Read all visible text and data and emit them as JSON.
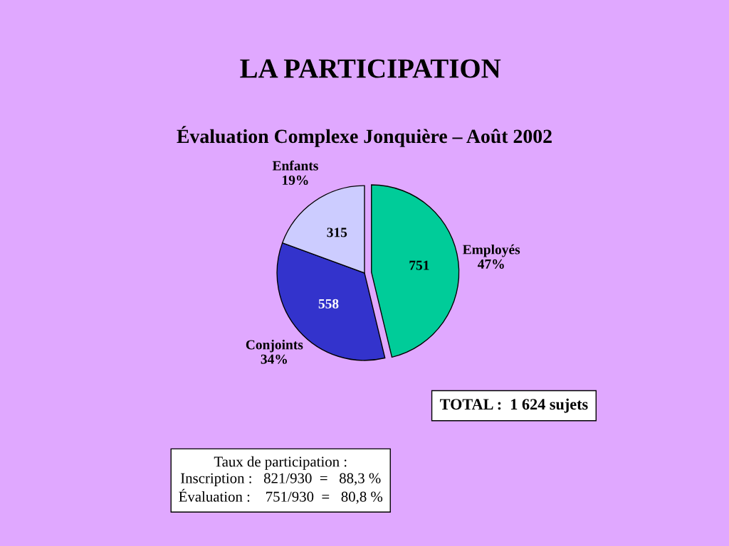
{
  "chart_data": {
    "type": "pie",
    "title": "LA PARTICIPATION",
    "subtitle": "Évaluation Complexe Jonquière – Août 2002",
    "categories": [
      "Employés\n47%",
      "Conjoints\n34%",
      "Enfants\n19%"
    ],
    "values": [
      751,
      558,
      315
    ],
    "colors": [
      "#00cc99",
      "#3333cc",
      "#ccccff"
    ],
    "data_labels": true,
    "legend": false,
    "annotations": [
      "TOTAL :  1 624 sujets",
      "Taux de participation :\nInscription :   821/930  =   88,3 %\nÉvaluation :    751/930  =   80,8 %"
    ]
  }
}
